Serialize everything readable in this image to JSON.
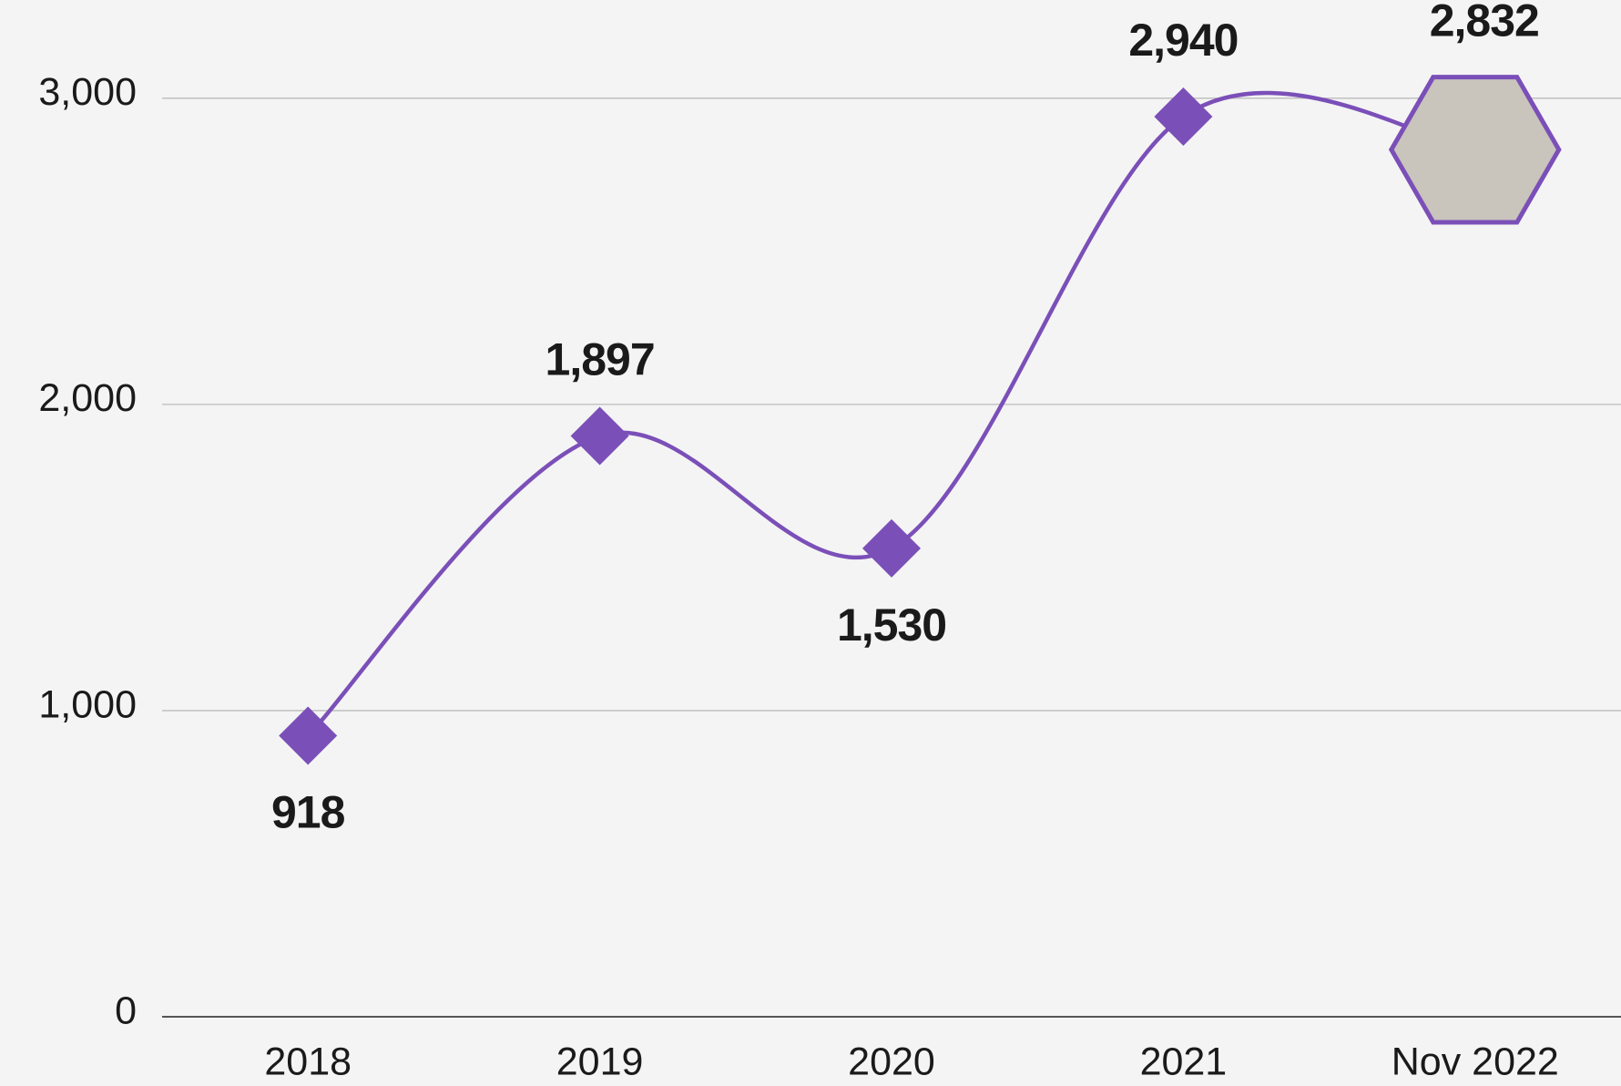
{
  "chart_data": {
    "type": "line",
    "categories": [
      "2018",
      "2019",
      "2020",
      "2021",
      "Nov 2022"
    ],
    "values": [
      918,
      1897,
      1530,
      2940,
      2832
    ],
    "value_labels": [
      "918",
      "1,897",
      "1,530",
      "2,940",
      "2,832"
    ],
    "color": "#7b4fb8",
    "ylim": [
      0,
      3300
    ],
    "yticks": [
      0,
      {
        "value": 1000,
        "label": "1,000"
      },
      {
        "value": 2000,
        "label": "2,000"
      },
      {
        "value": 3000,
        "label": "3,000"
      }
    ],
    "grid": true
  }
}
